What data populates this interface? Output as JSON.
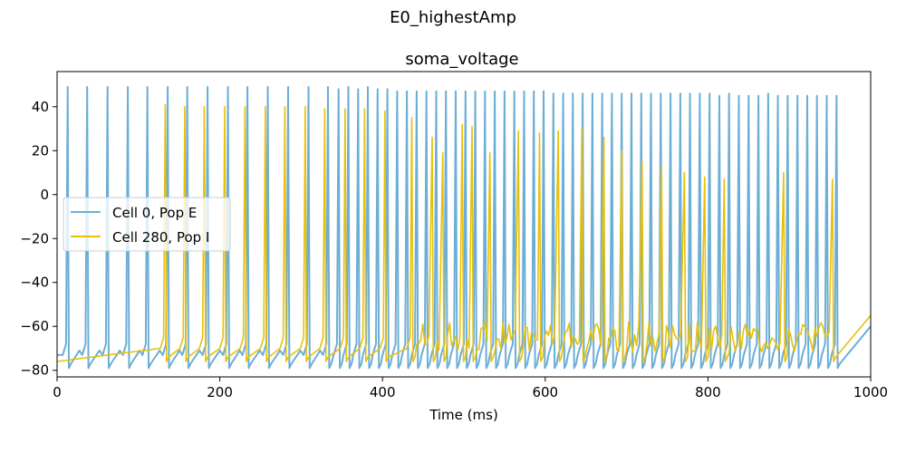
{
  "chart_data": {
    "type": "line",
    "suptitle": "E0_highestAmp",
    "title": "soma_voltage",
    "xlabel": "Time (ms)",
    "ylabel": "",
    "xlim": [
      0,
      1000
    ],
    "ylim": [
      -83,
      56
    ],
    "x_ticks": [
      0,
      200,
      400,
      600,
      800,
      1000
    ],
    "y_ticks": [
      -80,
      -60,
      -40,
      -20,
      0,
      20,
      40
    ],
    "grid": false,
    "legend_position": "center-left",
    "series": [
      {
        "name": "Cell 0, Pop E",
        "color": "#6baed6",
        "resting_mv": -77,
        "spikes": [
          {
            "t": 13,
            "peak": 49
          },
          {
            "t": 37,
            "peak": 49
          },
          {
            "t": 62,
            "peak": 49
          },
          {
            "t": 87,
            "peak": 49
          },
          {
            "t": 111,
            "peak": 49
          },
          {
            "t": 136,
            "peak": 49
          },
          {
            "t": 160,
            "peak": 49
          },
          {
            "t": 185,
            "peak": 49
          },
          {
            "t": 210,
            "peak": 49
          },
          {
            "t": 234,
            "peak": 49
          },
          {
            "t": 259,
            "peak": 49
          },
          {
            "t": 284,
            "peak": 49
          },
          {
            "t": 309,
            "peak": 49
          },
          {
            "t": 333,
            "peak": 49
          },
          {
            "t": 346,
            "peak": 48
          },
          {
            "t": 358,
            "peak": 49
          },
          {
            "t": 370,
            "peak": 48
          },
          {
            "t": 382,
            "peak": 49
          },
          {
            "t": 394,
            "peak": 48
          },
          {
            "t": 406,
            "peak": 48
          },
          {
            "t": 418,
            "peak": 47
          },
          {
            "t": 430,
            "peak": 47
          },
          {
            "t": 442,
            "peak": 47
          },
          {
            "t": 454,
            "peak": 47
          },
          {
            "t": 466,
            "peak": 47
          },
          {
            "t": 478,
            "peak": 47
          },
          {
            "t": 490,
            "peak": 47
          },
          {
            "t": 502,
            "peak": 47
          },
          {
            "t": 514,
            "peak": 47
          },
          {
            "t": 526,
            "peak": 47
          },
          {
            "t": 538,
            "peak": 47
          },
          {
            "t": 550,
            "peak": 47
          },
          {
            "t": 562,
            "peak": 47
          },
          {
            "t": 574,
            "peak": 47
          },
          {
            "t": 586,
            "peak": 47
          },
          {
            "t": 598,
            "peak": 47
          },
          {
            "t": 610,
            "peak": 46
          },
          {
            "t": 622,
            "peak": 46
          },
          {
            "t": 634,
            "peak": 46
          },
          {
            "t": 646,
            "peak": 46
          },
          {
            "t": 658,
            "peak": 46
          },
          {
            "t": 670,
            "peak": 46
          },
          {
            "t": 682,
            "peak": 46
          },
          {
            "t": 694,
            "peak": 46
          },
          {
            "t": 706,
            "peak": 46
          },
          {
            "t": 718,
            "peak": 46
          },
          {
            "t": 730,
            "peak": 46
          },
          {
            "t": 742,
            "peak": 46
          },
          {
            "t": 754,
            "peak": 46
          },
          {
            "t": 766,
            "peak": 46
          },
          {
            "t": 778,
            "peak": 46
          },
          {
            "t": 790,
            "peak": 46
          },
          {
            "t": 802,
            "peak": 46
          },
          {
            "t": 814,
            "peak": 45
          },
          {
            "t": 826,
            "peak": 46
          },
          {
            "t": 838,
            "peak": 45
          },
          {
            "t": 850,
            "peak": 45
          },
          {
            "t": 862,
            "peak": 45
          },
          {
            "t": 874,
            "peak": 46
          },
          {
            "t": 886,
            "peak": 45
          },
          {
            "t": 898,
            "peak": 45
          },
          {
            "t": 910,
            "peak": 45
          },
          {
            "t": 922,
            "peak": 45
          },
          {
            "t": 934,
            "peak": 45
          },
          {
            "t": 946,
            "peak": 45
          },
          {
            "t": 958,
            "peak": 45
          }
        ]
      },
      {
        "name": "Cell 280, Pop I",
        "color": "#e8c00a",
        "resting_mv": -74,
        "spikes": [
          {
            "t": 133,
            "peak": 41
          },
          {
            "t": 157,
            "peak": 40
          },
          {
            "t": 181,
            "peak": 40
          },
          {
            "t": 206,
            "peak": 40
          },
          {
            "t": 231,
            "peak": 40
          },
          {
            "t": 256,
            "peak": 40
          },
          {
            "t": 280,
            "peak": 40
          },
          {
            "t": 305,
            "peak": 40
          },
          {
            "t": 329,
            "peak": 39
          },
          {
            "t": 354,
            "peak": 39
          },
          {
            "t": 378,
            "peak": 39
          },
          {
            "t": 403,
            "peak": 38
          },
          {
            "t": 436,
            "peak": 35
          },
          {
            "t": 461,
            "peak": 26
          },
          {
            "t": 474,
            "peak": 19
          },
          {
            "t": 498,
            "peak": 32
          },
          {
            "t": 510,
            "peak": 31
          },
          {
            "t": 532,
            "peak": 19
          },
          {
            "t": 567,
            "peak": 29
          },
          {
            "t": 593,
            "peak": 28
          },
          {
            "t": 616,
            "peak": 29
          },
          {
            "t": 645,
            "peak": 30
          },
          {
            "t": 672,
            "peak": 26
          },
          {
            "t": 694,
            "peak": 20
          },
          {
            "t": 719,
            "peak": 15
          },
          {
            "t": 743,
            "peak": 13
          },
          {
            "t": 771,
            "peak": 10
          },
          {
            "t": 796,
            "peak": 8
          },
          {
            "t": 820,
            "peak": 7
          },
          {
            "t": 893,
            "peak": 10
          },
          {
            "t": 953,
            "peak": 7
          }
        ]
      }
    ]
  }
}
